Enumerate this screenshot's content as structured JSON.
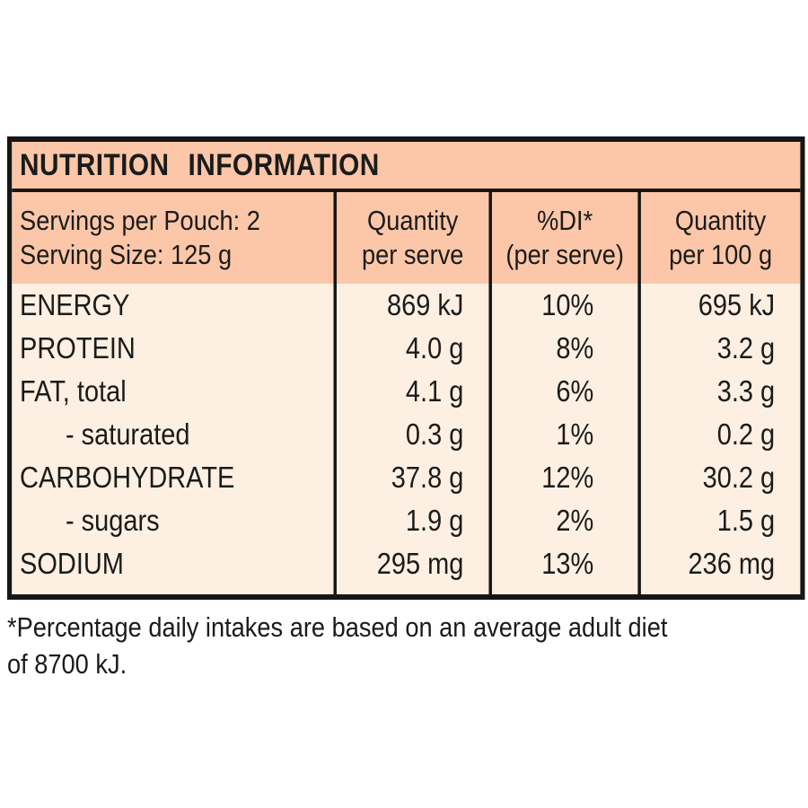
{
  "label": {
    "title": "NUTRITION INFORMATION",
    "serving_info": {
      "line1": "Servings per Pouch: 2",
      "line2": "Serving Size: 125 g"
    },
    "columns": {
      "per_serve": {
        "line1": "Quantity",
        "line2": "per serve"
      },
      "di": {
        "line1": "%DI*",
        "line2": "(per serve)"
      },
      "per_100g": {
        "line1": "Quantity",
        "line2": "per 100 g"
      }
    },
    "rows": [
      {
        "name": "ENERGY",
        "per_serve": "869 kJ",
        "di": "10%",
        "per_100g": "695 kJ"
      },
      {
        "name": "PROTEIN",
        "per_serve": "4.0 g",
        "di": "8%",
        "per_100g": "3.2 g"
      },
      {
        "name": "FAT, total",
        "per_serve": "4.1 g",
        "di": "6%",
        "per_100g": "3.3 g"
      },
      {
        "name": "- saturated",
        "per_serve": "0.3 g",
        "di": "1%",
        "per_100g": "0.2 g"
      },
      {
        "name": "CARBOHYDRATE",
        "per_serve": "37.8 g",
        "di": "12%",
        "per_100g": "30.2 g"
      },
      {
        "name": "- sugars",
        "per_serve": "1.9 g",
        "di": "2%",
        "per_100g": "1.5 g"
      },
      {
        "name": "SODIUM",
        "per_serve": "295 mg",
        "di": "13%",
        "per_100g": "236 mg"
      }
    ],
    "footnote": {
      "line1": "*Percentage daily intakes are based on an average adult diet",
      "line2": "of 8700 kJ."
    },
    "colors": {
      "salmon_header": "#fbc7a8",
      "cream_body": "#fdf0e2",
      "border_ink": "#161616"
    }
  }
}
